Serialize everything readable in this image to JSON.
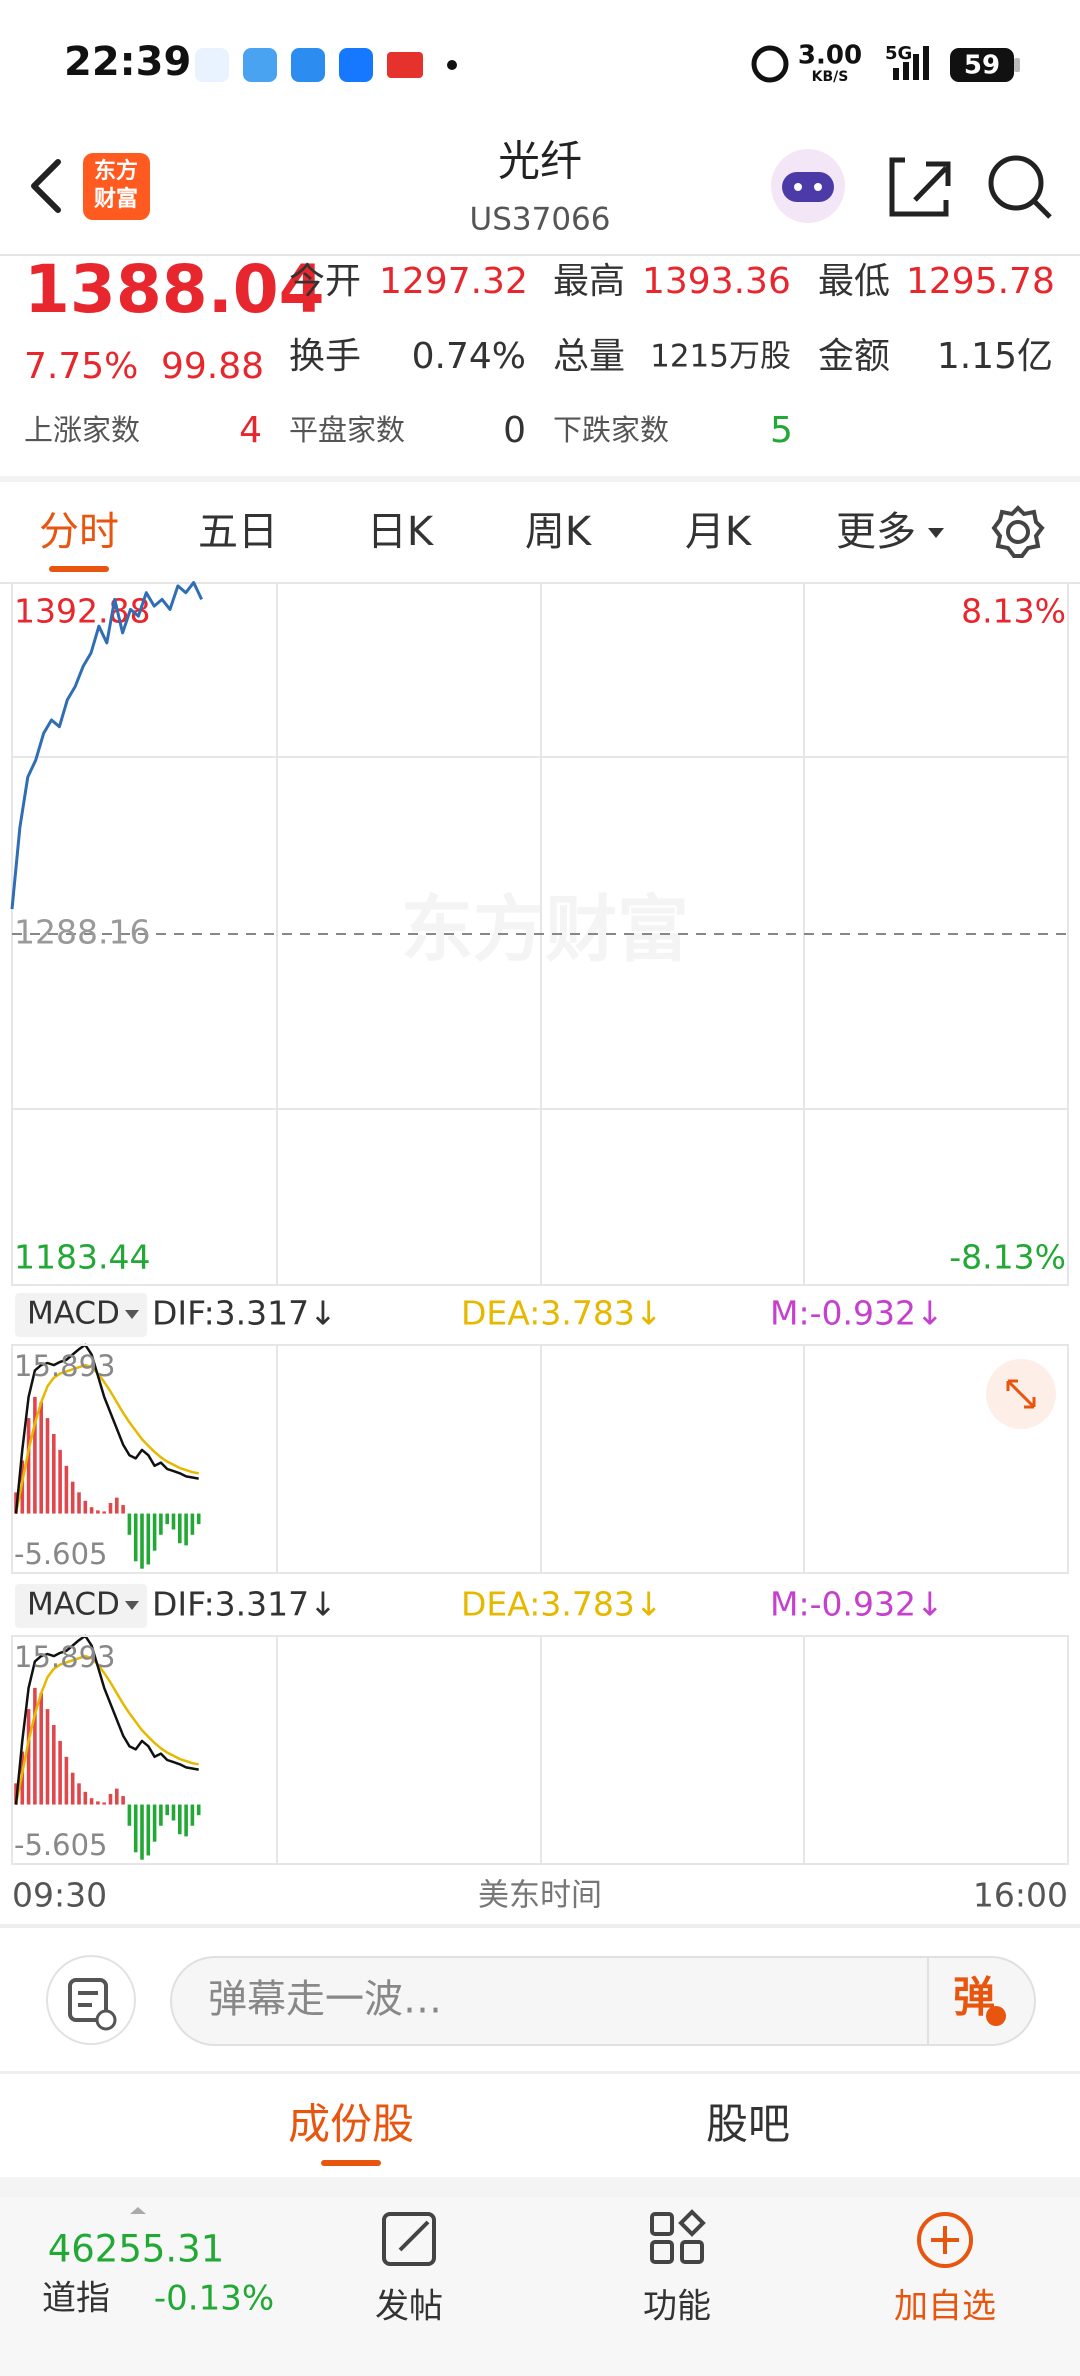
{
  "status_bar": {
    "time": "22:39",
    "speed": "3.00",
    "speed_unit": "KB/S",
    "network": "5G",
    "battery": "59"
  },
  "header": {
    "logo": [
      "东方",
      "财富"
    ],
    "title": "光纤",
    "code": "US37066"
  },
  "quote": {
    "price": "1388.04",
    "change_pct": "7.75%",
    "change": "99.88",
    "fields": [
      {
        "label": "今开",
        "value": "1297.32"
      },
      {
        "label": "最高",
        "value": "1393.36"
      },
      {
        "label": "最低",
        "value": "1295.78"
      },
      {
        "label": "换手",
        "value": "0.74%"
      },
      {
        "label": "总量",
        "value": "1215万股"
      },
      {
        "label": "金额",
        "value": "1.15亿"
      }
    ],
    "breadth": [
      {
        "label": "上涨家数",
        "value": "4"
      },
      {
        "label": "平盘家数",
        "value": "0"
      },
      {
        "label": "下跌家数",
        "value": "5"
      }
    ]
  },
  "tabs": [
    "分时",
    "五日",
    "日K",
    "周K",
    "月K",
    "更多"
  ],
  "watermark": "东方财富",
  "chart_data": [
    {
      "type": "line",
      "color": "#2f6db5",
      "values": [
        1295.6,
        1320,
        1335,
        1340,
        1348,
        1352,
        1350,
        1358,
        1362,
        1368,
        1372,
        1380,
        1375,
        1388,
        1378,
        1385,
        1383,
        1390,
        1386,
        1388,
        1385,
        1392,
        1390,
        1393,
        1388
      ],
      "ylim": [
        1183.44,
        1392.88
      ],
      "yticks": [
        1183.44,
        1288.16,
        1392.88
      ],
      "y2lim": [
        -8.13,
        8.13
      ],
      "y2ticks": [
        {
          "value": -8.13,
          "label": "-8.13%"
        },
        {
          "value": 8.13,
          "label": "8.13%"
        }
      ]
    },
    {
      "type": "macd",
      "indicator": "MACD",
      "dif_label": "DIF:3.317↓",
      "dea_label": "DEA:3.783↓",
      "m_label": "M:-0.932↓",
      "ylim": [
        -5.605,
        15.893
      ],
      "yticks": [
        -5.605,
        15.893
      ],
      "up_color": "#e0474c",
      "down_color": "#22a834",
      "histogram": [
        2,
        5,
        9,
        11,
        10.5,
        9,
        7.5,
        6,
        4.5,
        3,
        2,
        1.2,
        0.6,
        0.3,
        0.2,
        1,
        1.5,
        0.8,
        -2,
        -4.5,
        -5.2,
        -4.8,
        -3.5,
        -2,
        -1,
        -1.5,
        -2.8,
        -3,
        -2,
        -1
      ],
      "dif": {
        "color": "#111111",
        "values": [
          0,
          6,
          11,
          13.5,
          14,
          14.2,
          14,
          14.3,
          14.5,
          15,
          15.5,
          15.9,
          15,
          13,
          11,
          9.5,
          8,
          6.5,
          5.5,
          5.2,
          6,
          5.5,
          4.5,
          4.8,
          4.2,
          4,
          3.8,
          3.5,
          3.4,
          3.3
        ]
      },
      "dea": {
        "color": "#e6b800",
        "values": [
          0,
          3,
          6,
          8.5,
          10.5,
          12,
          12.8,
          13.2,
          13.4,
          13.6,
          13.8,
          14,
          13.8,
          13.2,
          12.4,
          11.5,
          10.5,
          9.5,
          8.6,
          7.8,
          7,
          6.4,
          5.8,
          5.3,
          4.9,
          4.6,
          4.3,
          4.1,
          3.9,
          3.8
        ]
      }
    },
    {
      "type": "macd",
      "indicator": "MACD",
      "dif_label": "DIF:3.317↓",
      "dea_label": "DEA:3.783↓",
      "m_label": "M:-0.932↓",
      "ylim": [
        -5.605,
        15.893
      ],
      "yticks": [
        -5.605,
        15.893
      ],
      "up_color": "#e0474c",
      "down_color": "#22a834",
      "histogram": [
        2,
        5,
        9,
        11,
        10.5,
        9,
        7.5,
        6,
        4.5,
        3,
        2,
        1.2,
        0.6,
        0.3,
        0.2,
        1,
        1.5,
        0.8,
        -2,
        -4.5,
        -5.2,
        -4.8,
        -3.5,
        -2,
        -1,
        -1.5,
        -2.8,
        -3,
        -2,
        -1
      ],
      "dif": {
        "color": "#111111",
        "values": [
          0,
          6,
          11,
          13.5,
          14,
          14.2,
          14,
          14.3,
          14.5,
          15,
          15.5,
          15.9,
          15,
          13,
          11,
          9.5,
          8,
          6.5,
          5.5,
          5.2,
          6,
          5.5,
          4.5,
          4.8,
          4.2,
          4,
          3.8,
          3.5,
          3.4,
          3.3
        ]
      },
      "dea": {
        "color": "#e6b800",
        "values": [
          0,
          3,
          6,
          8.5,
          10.5,
          12,
          12.8,
          13.2,
          13.4,
          13.6,
          13.8,
          14,
          13.8,
          13.2,
          12.4,
          11.5,
          10.5,
          9.5,
          8.6,
          7.8,
          7,
          6.4,
          5.8,
          5.3,
          4.9,
          4.6,
          4.3,
          4.1,
          3.9,
          3.8
        ]
      }
    }
  ],
  "time_axis": {
    "start": "09:30",
    "label": "美东时间",
    "end": "16:00"
  },
  "comment_bar": {
    "placeholder": "弹幕走一波…",
    "button": "弹"
  },
  "sub_tabs": [
    "成份股",
    "股吧"
  ],
  "bottom_bar": {
    "index_value": "46255.31",
    "index_name": "道指",
    "index_change": "-0.13%",
    "actions": [
      "发帖",
      "功能",
      "加自选"
    ]
  }
}
